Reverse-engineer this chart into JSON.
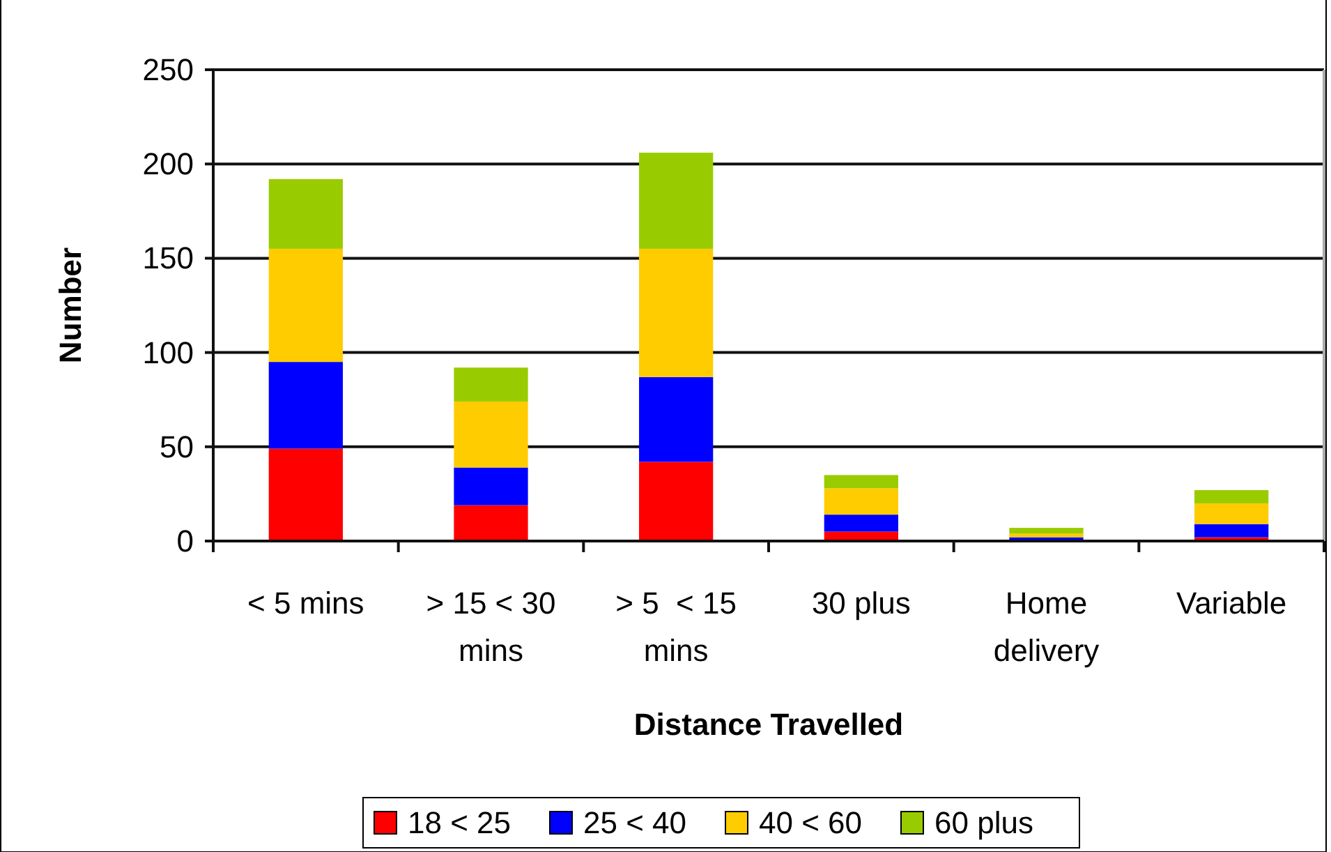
{
  "chart_data": {
    "type": "bar",
    "stacked": true,
    "xlabel": "Distance Travelled",
    "ylabel": "Number",
    "categories": [
      "< 5 mins",
      "> 15 < 30 mins",
      "> 5  < 15 mins",
      "30 plus",
      "Home delivery",
      "Variable"
    ],
    "series": [
      {
        "name": "18 < 25",
        "color": "#ff0000",
        "values": [
          49,
          19,
          42,
          5,
          0,
          2
        ]
      },
      {
        "name": "25 < 40",
        "color": "#0000ff",
        "values": [
          46,
          20,
          45,
          9,
          2,
          7
        ]
      },
      {
        "name": "40 < 60",
        "color": "#ffcc00",
        "values": [
          60,
          35,
          68,
          14,
          2,
          11
        ]
      },
      {
        "name": "60 plus",
        "color": "#99cc00",
        "values": [
          37,
          18,
          51,
          7,
          3,
          7
        ]
      }
    ],
    "ylim": [
      0,
      250
    ],
    "yticks": [
      0,
      50,
      100,
      150,
      200,
      250
    ],
    "grid": "y",
    "legend": "bottom"
  }
}
